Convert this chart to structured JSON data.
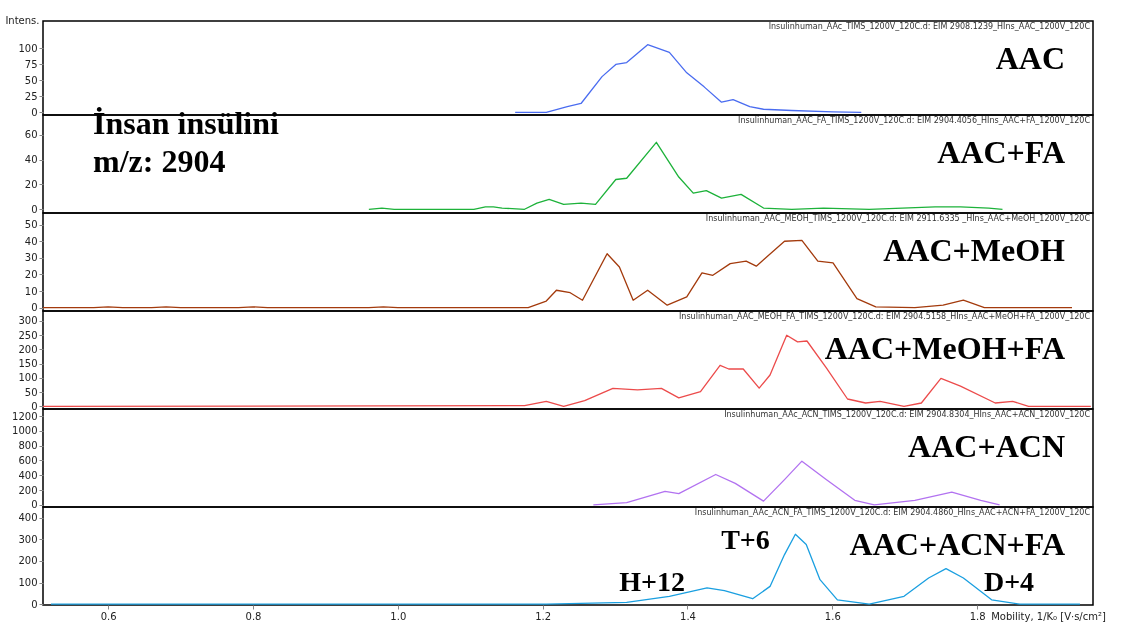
{
  "chart_data": [
    {
      "type": "line",
      "ylabel": "Intens.",
      "xlim": [
        0.51,
        1.96
      ],
      "ylim": [
        -4,
        143
      ],
      "yticks": [
        0,
        25,
        50,
        75,
        100
      ],
      "tick_labels": "y",
      "annotations": [
        "Insulinhuman_AAc_TIMS_1200V_120C.d: EIM 2908.1239_HIns_AAC_1200V_120C"
      ],
      "series": [
        {
          "name": "AAC",
          "color": "#4a6cf0",
          "x": [
            1.162,
            1.205,
            1.234,
            1.253,
            1.282,
            1.301,
            1.316,
            1.345,
            1.375,
            1.399,
            1.423,
            1.447,
            1.463,
            1.486,
            1.505,
            1.544,
            1.601,
            1.64
          ],
          "values": [
            0,
            0,
            9,
            14,
            56,
            75,
            78,
            106,
            94,
            62,
            40,
            16,
            20,
            9,
            5,
            3,
            1,
            0
          ]
        }
      ]
    },
    {
      "type": "line",
      "xlim": [
        0.51,
        1.96
      ],
      "ylim": [
        -3,
        76
      ],
      "yticks": [
        0,
        20,
        40,
        60
      ],
      "tick_labels": "y",
      "annotations": [
        "Insulinhuman_AAC_FA_TIMS_1200V_120C.d: EIM 2904.4056_HIns_AAC+FA_1200V_120C",
        "İnsan insülini\nm/z: 2904"
      ],
      "series": [
        {
          "name": "AAC+FA",
          "color": "#1db23a",
          "x": [
            0.96,
            0.978,
            0.995,
            1.105,
            1.121,
            1.132,
            1.144,
            1.175,
            1.192,
            1.209,
            1.229,
            1.253,
            1.273,
            1.301,
            1.316,
            1.357,
            1.388,
            1.408,
            1.426,
            1.447,
            1.474,
            1.505,
            1.544,
            1.588,
            1.651,
            1.742,
            1.777,
            1.816,
            1.835
          ],
          "values": [
            0,
            1,
            0,
            0,
            2,
            2,
            1,
            0,
            5,
            8,
            4,
            5,
            4,
            24,
            25,
            54,
            26,
            13,
            15,
            9,
            12,
            1,
            0,
            1,
            0,
            2,
            2,
            1,
            0
          ]
        }
      ]
    },
    {
      "type": "line",
      "xlim": [
        0.51,
        1.96
      ],
      "ylim": [
        -2,
        57
      ],
      "yticks": [
        0,
        10,
        20,
        30,
        40,
        50
      ],
      "tick_labels": "y",
      "annotations": [
        "Insulinhuman_AAC_MEOH_TIMS_1200V_120C.d: EIM 2911.6335 _HIns_AAC+MeOH_1200V_120C"
      ],
      "series": [
        {
          "name": "AAC+MeOH",
          "color": "#a33a0c",
          "x": [
            0.51,
            0.58,
            0.6,
            0.62,
            0.66,
            0.68,
            0.7,
            0.78,
            0.8,
            0.82,
            0.96,
            0.98,
            1.0,
            1.18,
            1.205,
            1.219,
            1.238,
            1.255,
            1.289,
            1.306,
            1.325,
            1.345,
            1.372,
            1.399,
            1.42,
            1.435,
            1.459,
            1.481,
            1.495,
            1.534,
            1.558,
            1.58,
            1.601,
            1.634,
            1.66,
            1.714,
            1.753,
            1.781,
            1.81,
            1.931
          ],
          "values": [
            0,
            0,
            0.5,
            0,
            0,
            0.5,
            0,
            0,
            0.5,
            0,
            0,
            0.5,
            0,
            0,
            4,
            10.5,
            9,
            4.5,
            32.5,
            24.5,
            4.5,
            10.5,
            1.5,
            6.5,
            21,
            19.5,
            26.5,
            28,
            25,
            40,
            40.5,
            28,
            27,
            5.5,
            0.5,
            0,
            1.5,
            4.5,
            0,
            0
          ]
        }
      ]
    },
    {
      "type": "line",
      "xlim": [
        0.51,
        1.96
      ],
      "ylim": [
        -9,
        334
      ],
      "yticks": [
        0,
        50,
        100,
        150,
        200,
        250,
        300
      ],
      "tick_labels": "y",
      "annotations": [
        "Insulinhuman_AAC_MEOH_FA_TIMS_1200V_120C.d: EIM 2904.5158_HIns_AAC+MeOH+FA_1200V_120C"
      ],
      "series": [
        {
          "name": "AAC+MeOH+FA",
          "color": "#ec4b4b",
          "x": [
            0.51,
            1.175,
            1.205,
            1.229,
            1.258,
            1.297,
            1.331,
            1.364,
            1.388,
            1.418,
            1.445,
            1.457,
            1.477,
            1.499,
            1.514,
            1.537,
            1.552,
            1.565,
            1.592,
            1.621,
            1.646,
            1.666,
            1.699,
            1.723,
            1.75,
            1.777,
            1.825,
            1.849,
            1.871,
            1.957
          ],
          "values": [
            0,
            3,
            18,
            0,
            20,
            63,
            58,
            63,
            30,
            52,
            144,
            131,
            131,
            64,
            110,
            249,
            226,
            229,
            134,
            26,
            12,
            18,
            0,
            12,
            98,
            71,
            12,
            18,
            0,
            0
          ]
        }
      ]
    },
    {
      "type": "line",
      "xlim": [
        0.51,
        1.96
      ],
      "ylim": [
        -30,
        1296
      ],
      "yticks": [
        0,
        200,
        400,
        600,
        800,
        1000,
        1200
      ],
      "tick_labels": "y",
      "annotations": [
        "Insulinhuman_AAc_ACN_TIMS_1200V_120C.d: EIM 2904.8304_HIns_AAC+ACN_1200V_120C"
      ],
      "series": [
        {
          "name": "AAC+ACN",
          "color": "#b272f0",
          "x": [
            1.27,
            1.316,
            1.369,
            1.388,
            1.439,
            1.466,
            1.505,
            1.534,
            1.558,
            1.592,
            1.631,
            1.658,
            1.714,
            1.765,
            1.805,
            1.831
          ],
          "values": [
            0,
            30,
            180,
            150,
            410,
            290,
            50,
            340,
            590,
            340,
            60,
            0,
            60,
            170,
            60,
            0
          ]
        }
      ]
    },
    {
      "type": "line",
      "xlim": [
        0.51,
        1.96
      ],
      "ylim": [
        -4,
        449
      ],
      "yticks": [
        0,
        100,
        200,
        300,
        400
      ],
      "xticks": [
        0.6,
        0.8,
        {
          "value": 1.0,
          "label": "1.0"
        },
        1.2,
        1.4,
        1.6,
        1.8
      ],
      "xlabel": "Mobility, 1/K₀ [V·s/cm²]",
      "annotations": [
        "Insulinhuman_AAc_ACN_FA_TIMS_1200V_120C.d: EIM 2904.4860_HIns_AAC+ACN+FA_1200V_120C",
        "T+6",
        "H+12",
        "D+4"
      ],
      "series": [
        {
          "name": "AAC+ACN+FA",
          "color": "#1a9fe0",
          "x": [
            0.521,
            1.205,
            1.316,
            1.375,
            1.427,
            1.451,
            1.49,
            1.514,
            1.534,
            1.549,
            1.564,
            1.583,
            1.607,
            1.651,
            1.699,
            1.733,
            1.757,
            1.781,
            1.82,
            1.859,
            1.942
          ],
          "values": [
            0,
            0,
            8,
            36,
            75,
            62,
            25,
            82,
            229,
            323,
            276,
            113,
            20,
            0,
            36,
            121,
            164,
            121,
            20,
            0,
            0
          ]
        }
      ]
    }
  ]
}
